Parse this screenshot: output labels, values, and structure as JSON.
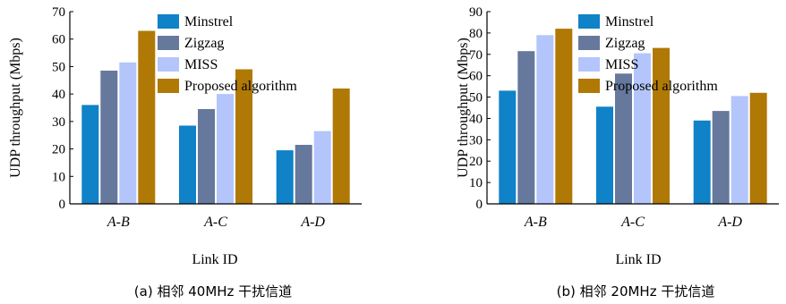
{
  "colors": {
    "Minstrel": "#0f82c8",
    "Zigzag": "#66789c",
    "MISS": "#b4c5fb",
    "Proposed algorithm": "#b07905"
  },
  "chart_data": [
    {
      "type": "bar",
      "categories": [
        "A-B",
        "A-C",
        "A-D"
      ],
      "series": [
        {
          "name": "Minstrel",
          "values": [
            36,
            28.5,
            19.5
          ]
        },
        {
          "name": "Zigzag",
          "values": [
            48.5,
            34.5,
            21.5
          ]
        },
        {
          "name": "MISS",
          "values": [
            51.5,
            40,
            26.5
          ]
        },
        {
          "name": "Proposed algorithm",
          "values": [
            63,
            49,
            42
          ]
        }
      ],
      "ylim": [
        0,
        70
      ],
      "yticks": [
        0,
        10,
        20,
        30,
        40,
        50,
        60,
        70
      ],
      "xlabel": "Link ID",
      "ylabel": "UDP throughput (Mbps)",
      "caption": "(a) 相邻 40MHz 干扰信道",
      "legend": "top-center"
    },
    {
      "type": "bar",
      "categories": [
        "A-B",
        "A-C",
        "A-D"
      ],
      "series": [
        {
          "name": "Minstrel",
          "values": [
            53,
            45.5,
            39
          ]
        },
        {
          "name": "Zigzag",
          "values": [
            71.5,
            61,
            43.5
          ]
        },
        {
          "name": "MISS",
          "values": [
            79,
            70.5,
            50.5
          ]
        },
        {
          "name": "Proposed algorithm",
          "values": [
            82,
            73,
            52
          ]
        }
      ],
      "ylim": [
        0,
        90
      ],
      "yticks": [
        0,
        10,
        20,
        30,
        40,
        50,
        60,
        70,
        80,
        90
      ],
      "xlabel": "Link ID",
      "ylabel": "UDP throughput (Mbps)",
      "caption": "(b) 相邻 20MHz 干扰信道",
      "legend": "top-center"
    }
  ]
}
